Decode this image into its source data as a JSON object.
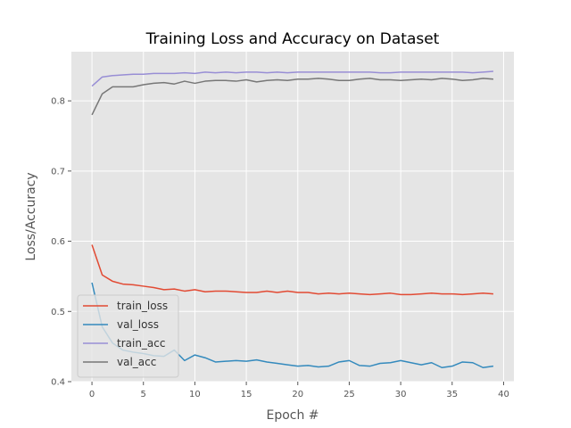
{
  "chart_data": {
    "type": "line",
    "title": "Training Loss and Accuracy on Dataset",
    "xlabel": "Epoch #",
    "ylabel": "Loss/Accuracy",
    "xlim": [
      -2,
      41
    ],
    "ylim": [
      0.4,
      0.87
    ],
    "xticks": [
      "0",
      "5",
      "10",
      "15",
      "20",
      "25",
      "30",
      "35",
      "40"
    ],
    "yticks": [
      "0.4",
      "0.5",
      "0.6",
      "0.7",
      "0.8"
    ],
    "grid": true,
    "style": "ggplot",
    "legend_position": "lower-left",
    "x": [
      0,
      1,
      2,
      3,
      4,
      5,
      6,
      7,
      8,
      9,
      10,
      11,
      12,
      13,
      14,
      15,
      16,
      17,
      18,
      19,
      20,
      21,
      22,
      23,
      24,
      25,
      26,
      27,
      28,
      29,
      30,
      31,
      32,
      33,
      34,
      35,
      36,
      37,
      38,
      39
    ],
    "series": [
      {
        "name": "train_loss",
        "color": "#E24A33",
        "values": [
          0.595,
          0.552,
          0.543,
          0.539,
          0.538,
          0.536,
          0.534,
          0.531,
          0.532,
          0.529,
          0.531,
          0.528,
          0.529,
          0.529,
          0.528,
          0.527,
          0.527,
          0.529,
          0.527,
          0.529,
          0.527,
          0.527,
          0.525,
          0.526,
          0.525,
          0.526,
          0.525,
          0.524,
          0.525,
          0.526,
          0.524,
          0.524,
          0.525,
          0.526,
          0.525,
          0.525,
          0.524,
          0.525,
          0.526,
          0.525
        ]
      },
      {
        "name": "val_loss",
        "color": "#348ABD",
        "values": [
          0.541,
          0.478,
          0.455,
          0.445,
          0.442,
          0.44,
          0.437,
          0.436,
          0.445,
          0.43,
          0.438,
          0.434,
          0.428,
          0.429,
          0.43,
          0.429,
          0.431,
          0.428,
          0.426,
          0.424,
          0.422,
          0.423,
          0.421,
          0.422,
          0.428,
          0.43,
          0.423,
          0.422,
          0.426,
          0.427,
          0.43,
          0.427,
          0.424,
          0.427,
          0.42,
          0.422,
          0.428,
          0.427,
          0.42,
          0.422
        ]
      },
      {
        "name": "train_acc",
        "color": "#988ED5",
        "values": [
          0.821,
          0.834,
          0.836,
          0.837,
          0.838,
          0.838,
          0.839,
          0.839,
          0.839,
          0.84,
          0.839,
          0.841,
          0.84,
          0.841,
          0.84,
          0.841,
          0.841,
          0.84,
          0.841,
          0.84,
          0.841,
          0.841,
          0.841,
          0.841,
          0.841,
          0.841,
          0.841,
          0.841,
          0.84,
          0.84,
          0.841,
          0.841,
          0.841,
          0.841,
          0.841,
          0.841,
          0.841,
          0.84,
          0.841,
          0.842
        ]
      },
      {
        "name": "val_acc",
        "color": "#777777",
        "values": [
          0.78,
          0.81,
          0.82,
          0.82,
          0.82,
          0.823,
          0.825,
          0.826,
          0.824,
          0.828,
          0.825,
          0.828,
          0.829,
          0.829,
          0.828,
          0.83,
          0.827,
          0.829,
          0.83,
          0.829,
          0.831,
          0.831,
          0.832,
          0.831,
          0.829,
          0.829,
          0.831,
          0.832,
          0.83,
          0.83,
          0.829,
          0.83,
          0.831,
          0.83,
          0.832,
          0.831,
          0.829,
          0.83,
          0.832,
          0.831
        ]
      }
    ]
  },
  "colors": {
    "plot_background": "#E5E5E5",
    "grid": "#FFFFFF",
    "text": "#555555"
  }
}
